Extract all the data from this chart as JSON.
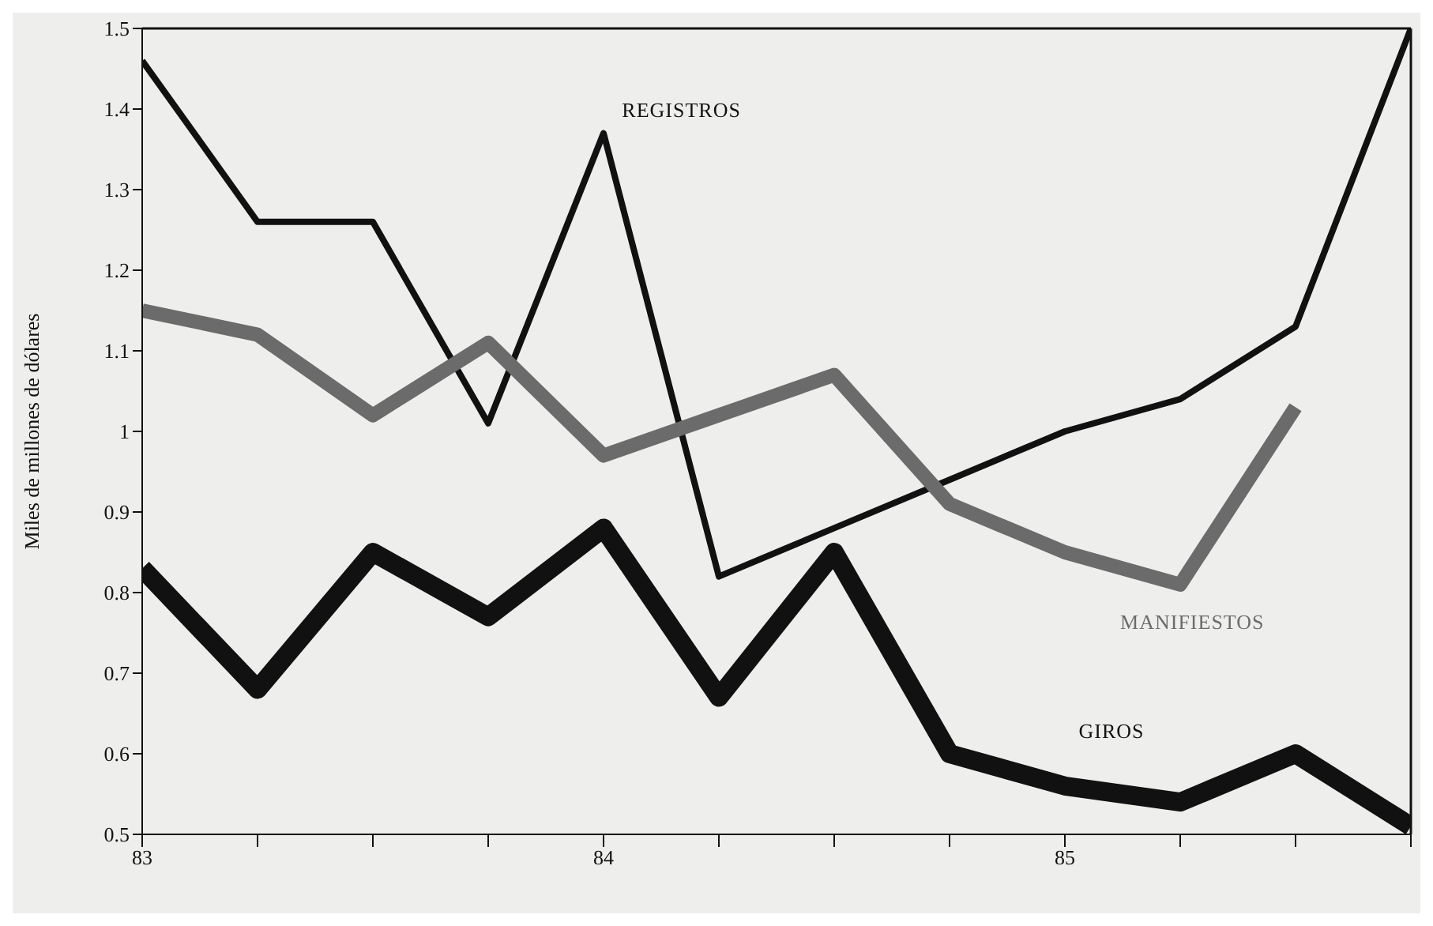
{
  "chart_data": {
    "type": "line",
    "ylabel": "Miles de millones de dólares",
    "x": [
      83,
      83.25,
      83.5,
      83.75,
      84,
      84.25,
      84.5,
      84.75,
      85,
      85.25,
      85.5,
      85.75
    ],
    "series": [
      {
        "name": "REGISTROS",
        "color": "#111111",
        "values": [
          1.46,
          1.26,
          1.26,
          1.01,
          1.37,
          0.82,
          0.88,
          0.94,
          1.0,
          1.04,
          1.13,
          1.5
        ]
      },
      {
        "name": "MANIFIESTOS",
        "color": "#6b6b6b",
        "values": [
          1.15,
          1.12,
          1.02,
          1.11,
          0.97,
          1.02,
          1.07,
          0.91,
          0.85,
          0.81,
          1.03,
          null
        ]
      },
      {
        "name": "GIROS",
        "color": "#111111",
        "values": [
          0.83,
          0.68,
          0.85,
          0.77,
          0.88,
          0.67,
          0.85,
          0.6,
          0.56,
          0.54,
          0.6,
          0.51
        ]
      }
    ],
    "xlim": [
      83,
      85.75
    ],
    "xticks": [
      83,
      {
        "value": 83.25,
        "label": null
      },
      {
        "value": 83.5,
        "label": null
      },
      {
        "value": 83.75,
        "label": null
      },
      84,
      {
        "value": 84.25,
        "label": null
      },
      {
        "value": 84.5,
        "label": null
      },
      {
        "value": 84.75,
        "label": null
      },
      85,
      {
        "value": 85.25,
        "label": null
      },
      {
        "value": 85.5,
        "label": null
      },
      {
        "value": 85.75,
        "label": null
      }
    ],
    "ylim": [
      0.5,
      1.5
    ],
    "yticks": [
      0.5,
      0.6,
      0.7,
      0.8,
      0.9,
      1,
      1.1,
      1.2,
      1.3,
      1.4,
      1.5
    ],
    "grid": false,
    "legend": false,
    "marker": "none",
    "line_style": "solid"
  }
}
